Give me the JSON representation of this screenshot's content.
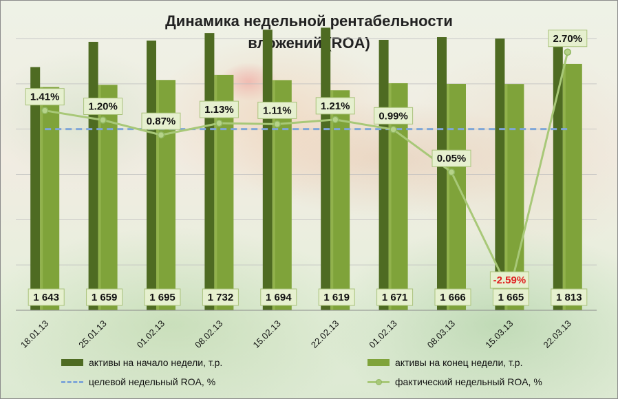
{
  "chart_data": {
    "type": "bar",
    "title_line1": "Динамика недельной рентабельности",
    "title_line2": "вложений (ROA)",
    "categories": [
      "18.01.13",
      "25.01.13",
      "01.02.13",
      "08.02.13",
      "15.02.13",
      "22.02.13",
      "01.02.13",
      "08.03.13",
      "15.03.13",
      "22.03.13"
    ],
    "ylim": [
      0,
      2000
    ],
    "roa_ylim": [
      -3.0,
      3.0
    ],
    "grid": true,
    "series": [
      {
        "name": "активы на начало  недели, т.р.",
        "kind": "bar",
        "color": "#4e6b22",
        "values": [
          1790,
          1975,
          1985,
          2040,
          2065,
          2080,
          1990,
          2010,
          2000,
          2010
        ]
      },
      {
        "name": "активы на конец недели, т.р.",
        "kind": "bar",
        "color": "#7fa33a",
        "values": [
          1643,
          1659,
          1695,
          1732,
          1694,
          1619,
          1671,
          1666,
          1665,
          1813
        ],
        "labels": [
          "1 643",
          "1 659",
          "1 695",
          "1 732",
          "1 694",
          "1 619",
          "1 671",
          "1 666",
          "1 665",
          "1 813"
        ]
      },
      {
        "name": "целевой недельный ROA, %",
        "kind": "line",
        "style": "dashed",
        "color": "#7fa6d8",
        "values": [
          1.0,
          1.0,
          1.0,
          1.0,
          1.0,
          1.0,
          1.0,
          1.0,
          1.0,
          1.0
        ]
      },
      {
        "name": "фактический недельный ROA, %",
        "kind": "line",
        "color": "#a8c878",
        "values": [
          1.41,
          1.2,
          0.87,
          1.13,
          1.11,
          1.21,
          0.99,
          0.05,
          -2.59,
          2.7
        ],
        "labels": [
          "1.41%",
          "1.20%",
          "0.87%",
          "1.13%",
          "1.11%",
          "1.21%",
          "0.99%",
          "0.05%",
          "-2.59%",
          "2.70%"
        ],
        "negative_label_color": "#e02020"
      }
    ],
    "legend_position": "bottom"
  }
}
